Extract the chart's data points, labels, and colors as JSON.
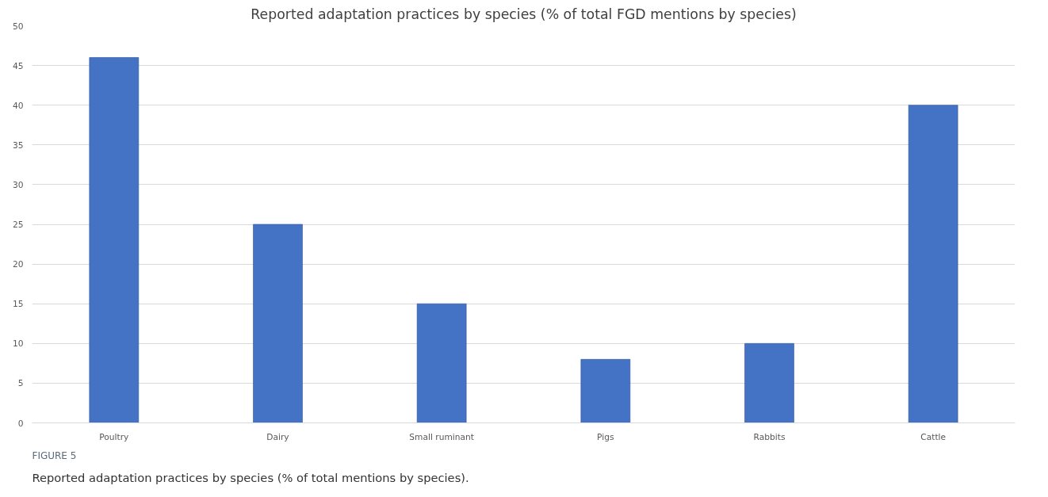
{
  "chart_data": {
    "type": "bar",
    "title": "Reported adaptation practices by species (% of total FGD mentions by species)",
    "categories": [
      "Poultry",
      "Dairy",
      "Small ruminant",
      "Pigs",
      "Rabbits",
      "Cattle"
    ],
    "values": [
      46,
      25,
      15,
      8,
      10,
      40
    ],
    "color": "#4472c4",
    "ylim": [
      0,
      50
    ],
    "yticks": [
      0,
      5,
      10,
      15,
      20,
      25,
      30,
      35,
      40,
      45,
      50
    ],
    "grid": "y",
    "annotations": [
      "FIGURE 5",
      "Reported adaptation practices by species (% of total mentions by species)."
    ]
  }
}
